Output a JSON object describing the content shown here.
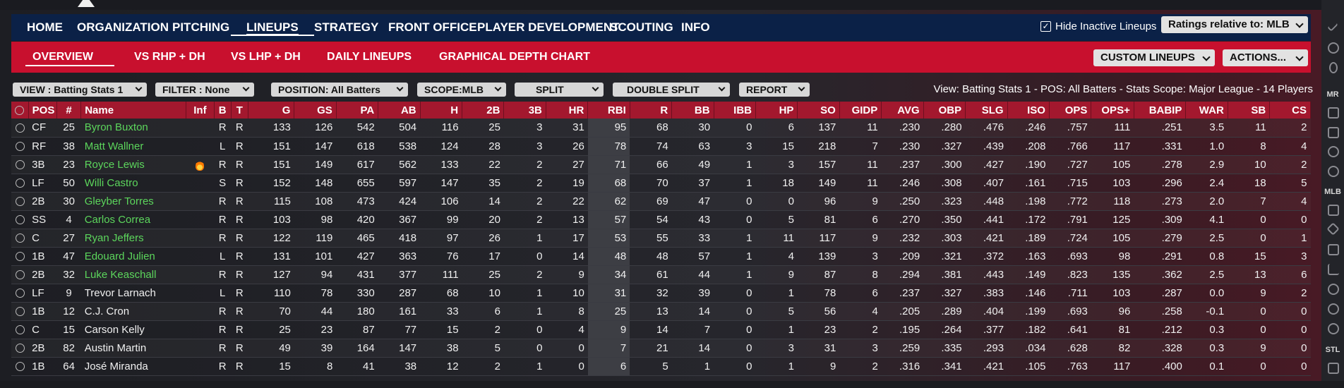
{
  "nav": {
    "items": [
      "HOME",
      "ORGANIZATION",
      "PITCHING",
      "LINEUPS",
      "STRATEGY",
      "FRONT OFFICE",
      "PLAYER DEVELOPMENT",
      "SCOUTING",
      "INFO"
    ],
    "active": "LINEUPS",
    "hide_inactive_label": "Hide Inactive Lineups",
    "hide_inactive_checked": true,
    "ratings_label": "Ratings relative to: MLB"
  },
  "subnav": {
    "items": [
      "OVERVIEW",
      "VS RHP + DH",
      "VS LHP + DH",
      "DAILY LINEUPS",
      "GRAPHICAL DEPTH CHART"
    ],
    "active": "OVERVIEW",
    "custom_lineups_label": "CUSTOM LINEUPS",
    "actions_label": "ACTIONS..."
  },
  "filters": {
    "view": "VIEW : Batting Stats 1",
    "filter": "FILTER : None",
    "position": "POSITION: All Batters",
    "scope": "SCOPE:MLB",
    "split": "SPLIT",
    "double_split": "DOUBLE SPLIT",
    "report": "REPORT",
    "summary": "View: Batting Stats 1 - POS: All Batters - Stats Scope: Major League - 14 Players"
  },
  "table": {
    "columns": [
      "",
      "POS",
      "#",
      "Name",
      "Inf",
      "B",
      "T",
      "G",
      "GS",
      "PA",
      "AB",
      "H",
      "2B",
      "3B",
      "HR",
      "RBI",
      "R",
      "BB",
      "IBB",
      "HP",
      "SO",
      "GIDP",
      "AVG",
      "OBP",
      "SLG",
      "ISO",
      "OPS",
      "OPS+",
      "BABIP",
      "WAR",
      "SB",
      "CS"
    ],
    "rows": [
      {
        "pos": "CF",
        "num": "25",
        "name": "Byron Buxton",
        "link": true,
        "inf": "",
        "b": "R",
        "t": "R",
        "stats": [
          "133",
          "126",
          "542",
          "504",
          "116",
          "25",
          "3",
          "31",
          "95",
          "68",
          "30",
          "0",
          "6",
          "137",
          "11",
          ".230",
          ".280",
          ".476",
          ".246",
          ".757",
          "111",
          ".251",
          "3.5",
          "11",
          "2"
        ]
      },
      {
        "pos": "RF",
        "num": "38",
        "name": "Matt Wallner",
        "link": true,
        "inf": "",
        "b": "L",
        "t": "R",
        "stats": [
          "151",
          "147",
          "618",
          "538",
          "124",
          "28",
          "3",
          "26",
          "78",
          "74",
          "63",
          "3",
          "15",
          "218",
          "7",
          ".230",
          ".327",
          ".439",
          ".208",
          ".766",
          "117",
          ".331",
          "1.0",
          "8",
          "4"
        ]
      },
      {
        "pos": "3B",
        "num": "23",
        "name": "Royce Lewis",
        "link": true,
        "inf": "flame",
        "b": "R",
        "t": "R",
        "stats": [
          "151",
          "149",
          "617",
          "562",
          "133",
          "22",
          "2",
          "27",
          "71",
          "66",
          "49",
          "1",
          "3",
          "157",
          "11",
          ".237",
          ".300",
          ".427",
          ".190",
          ".727",
          "105",
          ".278",
          "2.9",
          "10",
          "2"
        ]
      },
      {
        "pos": "LF",
        "num": "50",
        "name": "Willi Castro",
        "link": true,
        "inf": "",
        "b": "S",
        "t": "R",
        "stats": [
          "152",
          "148",
          "655",
          "597",
          "147",
          "35",
          "2",
          "19",
          "68",
          "70",
          "37",
          "1",
          "18",
          "149",
          "11",
          ".246",
          ".308",
          ".407",
          ".161",
          ".715",
          "103",
          ".296",
          "2.4",
          "18",
          "5"
        ]
      },
      {
        "pos": "2B",
        "num": "30",
        "name": "Gleyber Torres",
        "link": true,
        "inf": "",
        "b": "R",
        "t": "R",
        "stats": [
          "115",
          "108",
          "473",
          "424",
          "106",
          "14",
          "2",
          "22",
          "62",
          "69",
          "47",
          "0",
          "0",
          "96",
          "9",
          ".250",
          ".323",
          ".448",
          ".198",
          ".772",
          "118",
          ".273",
          "2.0",
          "7",
          "4"
        ]
      },
      {
        "pos": "SS",
        "num": "4",
        "name": "Carlos Correa",
        "link": true,
        "inf": "",
        "b": "R",
        "t": "R",
        "stats": [
          "103",
          "98",
          "420",
          "367",
          "99",
          "20",
          "2",
          "13",
          "57",
          "54",
          "43",
          "0",
          "5",
          "81",
          "6",
          ".270",
          ".350",
          ".441",
          ".172",
          ".791",
          "125",
          ".309",
          "4.1",
          "0",
          "0"
        ]
      },
      {
        "pos": "C",
        "num": "27",
        "name": "Ryan Jeffers",
        "link": true,
        "inf": "",
        "b": "R",
        "t": "R",
        "stats": [
          "122",
          "119",
          "465",
          "418",
          "97",
          "26",
          "1",
          "17",
          "53",
          "55",
          "33",
          "1",
          "11",
          "117",
          "9",
          ".232",
          ".303",
          ".421",
          ".189",
          ".724",
          "105",
          ".279",
          "2.5",
          "0",
          "1"
        ]
      },
      {
        "pos": "1B",
        "num": "47",
        "name": "Edouard Julien",
        "link": true,
        "inf": "",
        "b": "L",
        "t": "R",
        "stats": [
          "131",
          "101",
          "427",
          "363",
          "76",
          "17",
          "0",
          "14",
          "48",
          "48",
          "57",
          "1",
          "4",
          "139",
          "3",
          ".209",
          ".321",
          ".372",
          ".163",
          ".693",
          "98",
          ".291",
          "0.8",
          "15",
          "3"
        ]
      },
      {
        "pos": "2B",
        "num": "32",
        "name": "Luke Keaschall",
        "link": true,
        "inf": "",
        "b": "R",
        "t": "R",
        "stats": [
          "127",
          "94",
          "431",
          "377",
          "111",
          "25",
          "2",
          "9",
          "34",
          "61",
          "44",
          "1",
          "9",
          "87",
          "8",
          ".294",
          ".381",
          ".443",
          ".149",
          ".823",
          "135",
          ".362",
          "2.5",
          "13",
          "6"
        ]
      },
      {
        "pos": "LF",
        "num": "9",
        "name": "Trevor Larnach",
        "link": false,
        "inf": "",
        "b": "L",
        "t": "R",
        "stats": [
          "110",
          "78",
          "330",
          "287",
          "68",
          "10",
          "1",
          "10",
          "31",
          "32",
          "39",
          "0",
          "1",
          "78",
          "6",
          ".237",
          ".327",
          ".383",
          ".146",
          ".711",
          "103",
          ".287",
          "0.0",
          "9",
          "2"
        ]
      },
      {
        "pos": "1B",
        "num": "12",
        "name": "C.J. Cron",
        "link": false,
        "inf": "",
        "b": "R",
        "t": "R",
        "stats": [
          "70",
          "44",
          "180",
          "161",
          "33",
          "6",
          "1",
          "8",
          "25",
          "13",
          "14",
          "0",
          "5",
          "56",
          "4",
          ".205",
          ".289",
          ".404",
          ".199",
          ".693",
          "96",
          ".258",
          "-0.1",
          "0",
          "0"
        ]
      },
      {
        "pos": "C",
        "num": "15",
        "name": "Carson Kelly",
        "link": false,
        "inf": "",
        "b": "R",
        "t": "R",
        "stats": [
          "25",
          "23",
          "87",
          "77",
          "15",
          "2",
          "0",
          "4",
          "9",
          "14",
          "7",
          "0",
          "1",
          "23",
          "2",
          ".195",
          ".264",
          ".377",
          ".182",
          ".641",
          "81",
          ".212",
          "0.3",
          "0",
          "0"
        ]
      },
      {
        "pos": "2B",
        "num": "82",
        "name": "Austin Martin",
        "link": false,
        "inf": "",
        "b": "R",
        "t": "R",
        "stats": [
          "49",
          "39",
          "164",
          "147",
          "38",
          "5",
          "0",
          "0",
          "7",
          "21",
          "14",
          "0",
          "3",
          "31",
          "3",
          ".259",
          ".335",
          ".293",
          ".034",
          ".628",
          "82",
          ".328",
          "0.3",
          "9",
          "0"
        ]
      },
      {
        "pos": "1B",
        "num": "64",
        "name": "José Miranda",
        "link": false,
        "inf": "",
        "b": "R",
        "t": "R",
        "stats": [
          "15",
          "8",
          "41",
          "38",
          "12",
          "2",
          "1",
          "0",
          "6",
          "5",
          "1",
          "0",
          "1",
          "9",
          "2",
          ".316",
          ".341",
          ".421",
          ".105",
          ".763",
          "117",
          ".400",
          "0.1",
          "0",
          "0"
        ]
      }
    ]
  },
  "sidebar": {
    "labels": [
      "MR",
      "MLB",
      "STL"
    ]
  },
  "colors": {
    "nav_bg": "#0b2147",
    "subnav_bg": "#c8102e",
    "header_bg": "#a3182e",
    "name_link": "#5cd65c"
  }
}
